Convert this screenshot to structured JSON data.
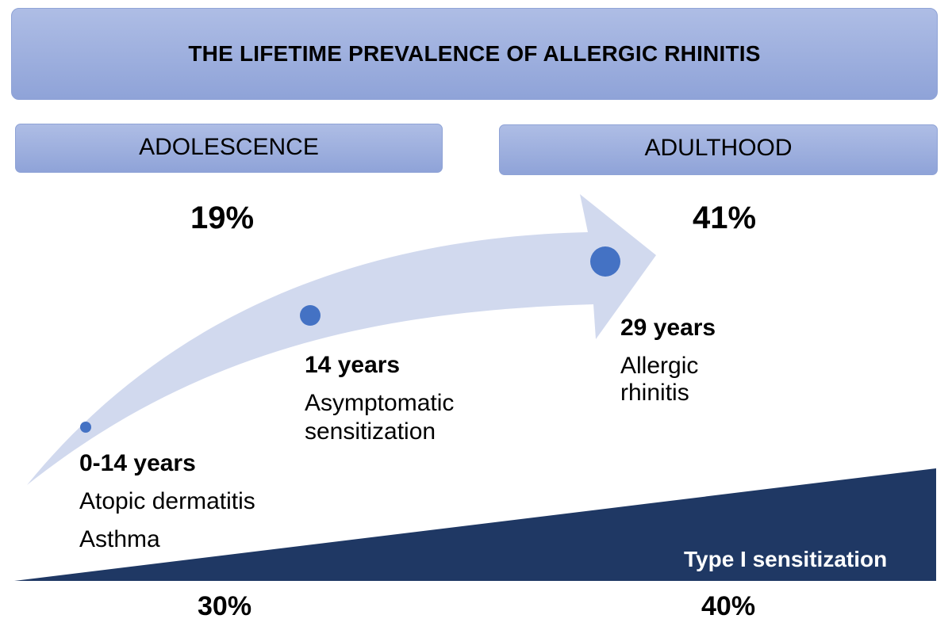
{
  "title": "THE LIFETIME PREVALENCE OF ALLERGIC RHINITIS",
  "stages": {
    "adolescence": {
      "label": "ADOLESCENCE",
      "prevalence": "19%",
      "sensitization": "30%"
    },
    "adulthood": {
      "label": "ADULTHOOD",
      "prevalence": "41%",
      "sensitization": "40%"
    }
  },
  "milestones": [
    {
      "age": "0-14 years",
      "lines": [
        "Atopic dermatitis",
        "Asthma"
      ]
    },
    {
      "age": "14 years",
      "lines": [
        "Asymptomatic",
        "sensitization"
      ]
    },
    {
      "age": "29 years",
      "lines": [
        "Allergic",
        "rhinitis"
      ]
    }
  ],
  "sensitization_label": "Type I sensitization",
  "colors": {
    "banner_top": "#aebde5",
    "banner_bottom": "#8fa3d8",
    "arrow": "#d1d9ee",
    "dot": "#4472c4",
    "wedge": "#1f3864"
  }
}
